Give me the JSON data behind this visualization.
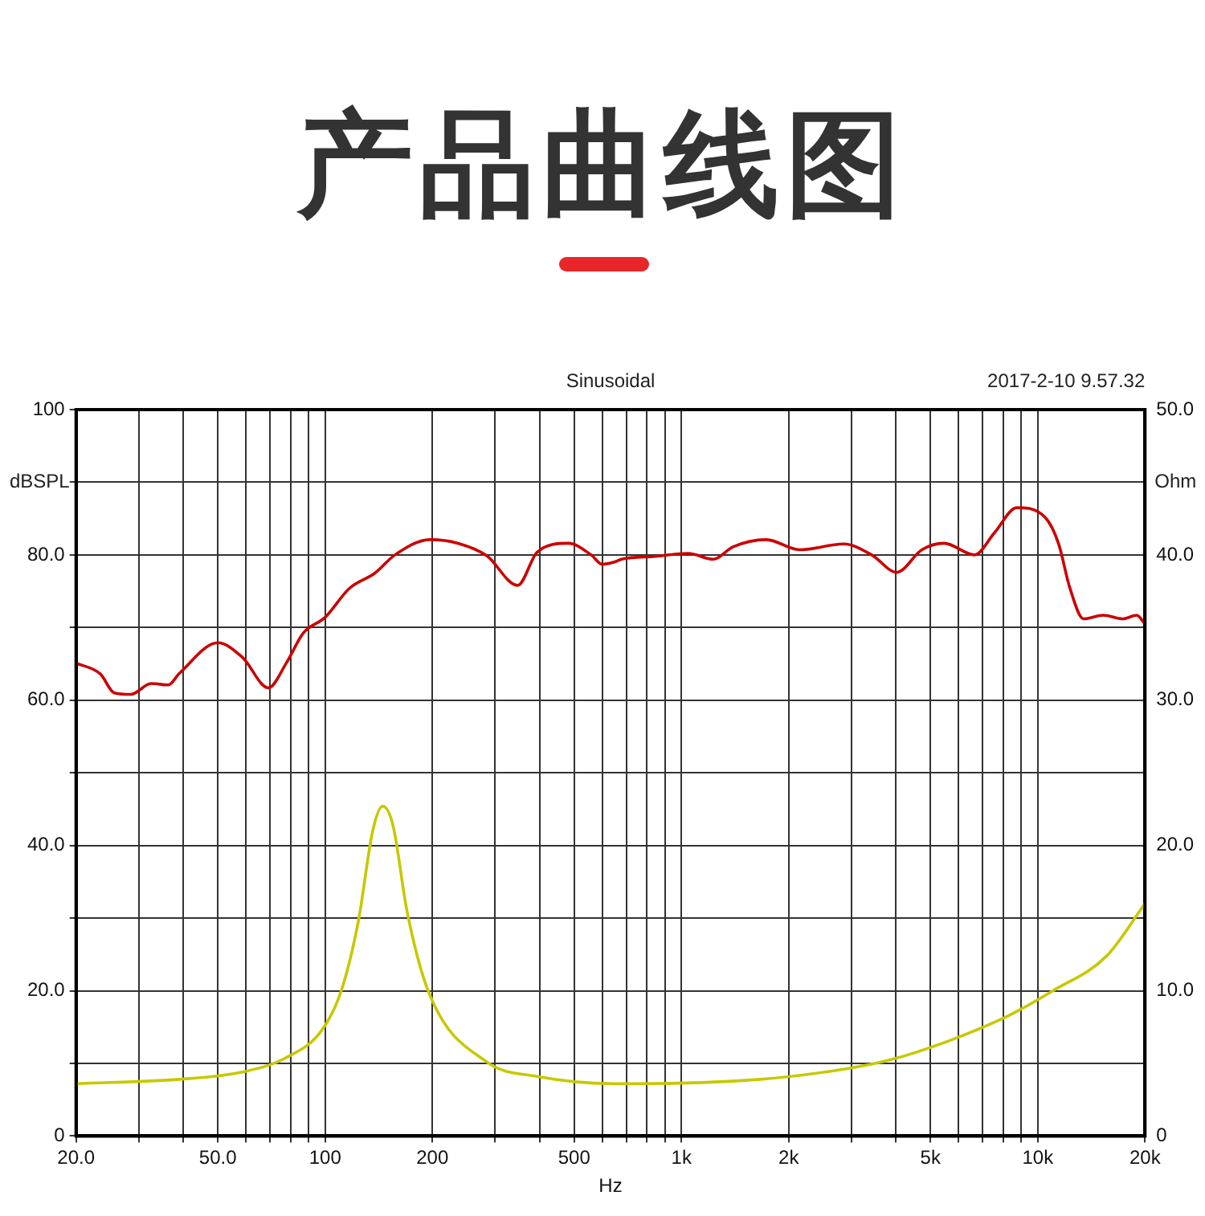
{
  "chart_data": {
    "type": "line",
    "title": "产品曲线图",
    "annotations": [
      "Sinusoidal",
      "2017-2-10 9.57.32"
    ],
    "xlabel": "Hz",
    "ylabel": "dBSPL",
    "y2label": "Ohm",
    "log": "x",
    "grid": true,
    "legend": false,
    "marker": "none",
    "line_style": "solid",
    "xlim": [
      20,
      20000
    ],
    "xticks": [
      {
        "value": 20,
        "label": "20.0"
      },
      {
        "value": 30,
        "label": null
      },
      {
        "value": 40,
        "label": null
      },
      {
        "value": 50,
        "label": "50.0"
      },
      {
        "value": 60,
        "label": null
      },
      {
        "value": 70,
        "label": null
      },
      {
        "value": 80,
        "label": null
      },
      {
        "value": 90,
        "label": null
      },
      100,
      200,
      {
        "value": 300,
        "label": null
      },
      {
        "value": 400,
        "label": null
      },
      500,
      {
        "value": 600,
        "label": null
      },
      {
        "value": 700,
        "label": null
      },
      {
        "value": 800,
        "label": null
      },
      {
        "value": 900,
        "label": null
      },
      {
        "value": 1000,
        "label": "1k"
      },
      {
        "value": 2000,
        "label": "2k"
      },
      {
        "value": 3000,
        "label": null
      },
      {
        "value": 4000,
        "label": null
      },
      {
        "value": 5000,
        "label": "5k"
      },
      {
        "value": 6000,
        "label": null
      },
      {
        "value": 7000,
        "label": null
      },
      {
        "value": 8000,
        "label": null
      },
      {
        "value": 9000,
        "label": null
      },
      {
        "value": 10000,
        "label": "10k"
      },
      {
        "value": 20000,
        "label": "20k"
      }
    ],
    "ylim": [
      0,
      100
    ],
    "yticks": [
      0,
      {
        "value": 10,
        "label": null
      },
      {
        "value": 20,
        "label": "20.0"
      },
      {
        "value": 30,
        "label": null
      },
      {
        "value": 40,
        "label": "40.0"
      },
      {
        "value": 50,
        "label": null
      },
      {
        "value": 60,
        "label": "60.0"
      },
      {
        "value": 70,
        "label": null
      },
      {
        "value": 80,
        "label": "80.0"
      },
      {
        "value": 90,
        "label": null
      },
      100
    ],
    "y2lim": [
      0,
      50
    ],
    "y2ticks": [
      0,
      {
        "value": 10,
        "label": "10.0"
      },
      {
        "value": 20,
        "label": "20.0"
      },
      {
        "value": 30,
        "label": "30.0"
      },
      {
        "value": 40,
        "label": "40.0"
      },
      {
        "value": 50,
        "label": "50.0"
      }
    ],
    "series": [
      {
        "color": "#cc0000",
        "x": [
          20,
          23.4,
          25.6,
          28.5,
          32.5,
          36.3,
          39,
          50,
          58.6,
          69.3,
          77.8,
          86.7,
          100,
          117,
          138,
          157,
          197,
          236,
          284,
          347,
          394,
          482,
          558,
          600,
          656,
          679,
          843,
          1045,
          1230,
          1395,
          1730,
          2145,
          2855,
          3420,
          4020,
          4730,
          5460,
          6650,
          7550,
          8740,
          10470,
          11450,
          12300,
          13450,
          15280,
          17330,
          18960,
          20000
        ],
        "values": [
          65.1,
          63.6,
          61,
          60.8,
          62.3,
          62.1,
          63.7,
          67.9,
          65.9,
          61.7,
          65.1,
          69.2,
          71.4,
          75.4,
          77.5,
          80,
          82.1,
          81.6,
          79.9,
          75.8,
          80.4,
          81.6,
          80,
          78.7,
          79.1,
          79.4,
          79.8,
          80.2,
          79.4,
          81.1,
          82.1,
          80.7,
          81.5,
          80,
          77.6,
          80.7,
          81.6,
          80,
          83,
          86.5,
          85.2,
          81.5,
          75.5,
          71.2,
          71.7,
          71.2,
          71.7,
          70.5
        ]
      },
      {
        "color": "#c8c800",
        "axis": "y2",
        "x": [
          20,
          39,
          58.6,
          77.8,
          98,
          111,
          124,
          136,
          145,
          155,
          170,
          196,
          284,
          394,
          656,
          759,
          1660,
          2855,
          3800,
          5560,
          8300,
          11040,
          15620,
          20000
        ],
        "values": [
          3.6,
          3.9,
          4.4,
          5.4,
          7.3,
          10,
          14.8,
          21,
          22.7,
          21.4,
          15.4,
          9.8,
          5.1,
          4.1,
          3.6,
          3.6,
          3.9,
          4.6,
          5.2,
          6.5,
          8.3,
          10,
          12.4,
          16
        ]
      }
    ]
  }
}
